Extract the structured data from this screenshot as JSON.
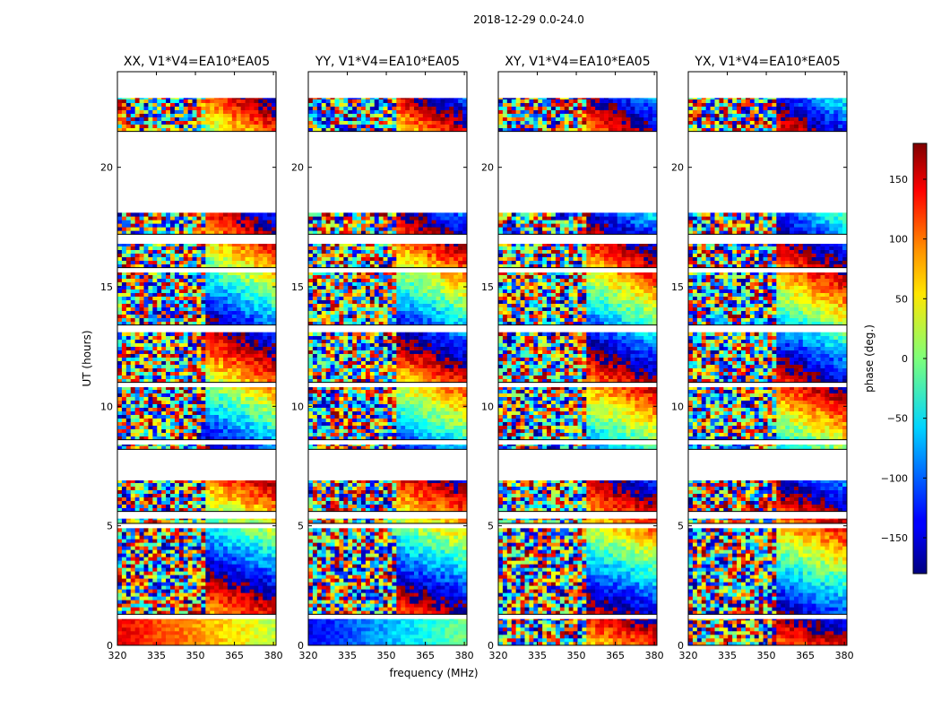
{
  "figure": {
    "suptitle": "2018-12-29 0.0-24.0",
    "xlabel": "frequency (MHz)",
    "ylabel": "UT (hours)",
    "colorbar_label": "phase (deg.)"
  },
  "chart_data": {
    "type": "heatmap",
    "title": "2018-12-29 0.0-24.0",
    "xlabel": "frequency (MHz)",
    "ylabel": "UT (hours)",
    "xlim": [
      320,
      381
    ],
    "ylim": [
      0,
      24
    ],
    "x_ticks": [
      320,
      335,
      350,
      365,
      380
    ],
    "y_ticks": [
      0,
      5,
      10,
      15,
      20
    ],
    "colormap": "jet",
    "colorbar": {
      "label": "phase (deg.)",
      "range": [
        -180,
        180
      ],
      "ticks": [
        150,
        100,
        50,
        0,
        -50,
        -100,
        -150
      ],
      "tick_labels": [
        "150",
        "100",
        "50",
        "0",
        "−50",
        "−100",
        "−150"
      ]
    },
    "panels": [
      {
        "title": "XX, V1*V4=EA10*EA05",
        "polarization": "XX"
      },
      {
        "title": "YY, V1*V4=EA10*EA05",
        "polarization": "YY"
      },
      {
        "title": "XY, V1*V4=EA10*EA05",
        "polarization": "XY"
      },
      {
        "title": "YX, V1*V4=EA10*EA05",
        "polarization": "YX"
      }
    ],
    "data_present_ut_ranges": [
      [
        0.0,
        1.1
      ],
      [
        1.3,
        4.9
      ],
      [
        5.1,
        5.3
      ],
      [
        5.6,
        6.9
      ],
      [
        8.2,
        8.4
      ],
      [
        8.6,
        10.8
      ],
      [
        11.0,
        13.1
      ],
      [
        13.4,
        15.6
      ],
      [
        15.8,
        16.8
      ],
      [
        17.2,
        18.1
      ],
      [
        21.5,
        22.9
      ]
    ],
    "empty_ut_ranges": [
      [
        6.9,
        8.2
      ],
      [
        18.1,
        21.5
      ],
      [
        22.9,
        24.0
      ]
    ]
  }
}
